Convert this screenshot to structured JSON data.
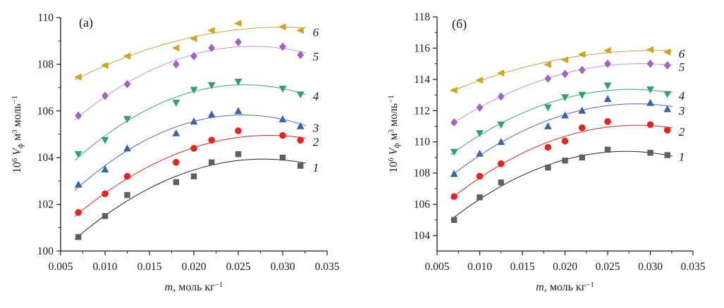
{
  "figure": {
    "background": "#ffffff",
    "axis_color": "#1a1a1a"
  },
  "chart_data": [
    {
      "id": "chart-a",
      "type": "scatter",
      "panel_label": "(a)",
      "xlabel_parts": [
        {
          "t": "m",
          "s": "i"
        },
        {
          "t": ", моль кг",
          "s": "n"
        },
        {
          "t": "−1",
          "s": "sup"
        }
      ],
      "ylabel_parts": [
        {
          "t": "10",
          "s": "n"
        },
        {
          "t": "6",
          "s": "sup"
        },
        {
          "t": " ",
          "s": "n"
        },
        {
          "t": "V",
          "s": "i"
        },
        {
          "t": "ф",
          "s": "sub"
        },
        {
          "t": " м",
          "s": "n"
        },
        {
          "t": "3",
          "s": "sup"
        },
        {
          "t": " моль",
          "s": "n"
        },
        {
          "t": "−1",
          "s": "sup"
        }
      ],
      "xlim": [
        0.005,
        0.035
      ],
      "ylim": [
        100,
        110
      ],
      "xticks": [
        0.005,
        0.01,
        0.015,
        0.02,
        0.025,
        0.03,
        0.035
      ],
      "xtick_labels": [
        "0.005",
        "0.010",
        "0.015",
        "0.020",
        "0.025",
        "0.030",
        "0.035"
      ],
      "xminor": [
        0.0075,
        0.0125,
        0.0175,
        0.0225,
        0.0275,
        0.0325
      ],
      "yticks": [
        100,
        102,
        104,
        106,
        108,
        110
      ],
      "ytick_labels": [
        "100",
        "102",
        "104",
        "106",
        "108",
        "110"
      ],
      "yminor": [
        101,
        103,
        105,
        107,
        109
      ],
      "grid": false,
      "legend_position": "inline-right",
      "x": [
        0.007,
        0.01,
        0.0125,
        0.018,
        0.02,
        0.022,
        0.025,
        0.03,
        0.032
      ],
      "series": [
        {
          "label": "1",
          "marker": "square",
          "marker_color": "#5f5f5f",
          "line_color": "#262626",
          "values": [
            100.6,
            101.5,
            102.4,
            102.95,
            103.2,
            103.8,
            104.15,
            104.0,
            103.65
          ]
        },
        {
          "label": "2",
          "marker": "circle",
          "marker_color": "#e6241f",
          "line_color": "#e02a24",
          "values": [
            101.65,
            102.45,
            103.2,
            103.8,
            104.4,
            104.75,
            105.15,
            104.95,
            104.75
          ]
        },
        {
          "label": "3",
          "marker": "triangle-up",
          "marker_color": "#3a62ae",
          "line_color": "#5068b8",
          "values": [
            102.85,
            103.5,
            104.4,
            105.05,
            105.55,
            105.85,
            106.0,
            105.65,
            105.35
          ]
        },
        {
          "label": "4",
          "marker": "triangle-down",
          "marker_color": "#2ea362",
          "line_color": "#3aa878",
          "values": [
            104.15,
            104.75,
            105.65,
            106.35,
            106.9,
            107.1,
            107.25,
            106.95,
            106.7
          ]
        },
        {
          "label": "5",
          "marker": "diamond",
          "marker_color": "#9d64c3",
          "line_color": "#c892d8",
          "values": [
            105.8,
            106.65,
            107.15,
            108.0,
            108.35,
            108.7,
            108.95,
            108.75,
            108.4
          ]
        },
        {
          "label": "6",
          "marker": "triangle-left",
          "marker_color": "#d0a41c",
          "line_color": "#c7a53c",
          "values": [
            107.45,
            107.95,
            108.35,
            108.7,
            109.1,
            109.45,
            109.75,
            109.6,
            109.45
          ]
        }
      ]
    },
    {
      "id": "chart-b",
      "type": "scatter",
      "panel_label": "(б)",
      "xlabel_parts": [
        {
          "t": "m",
          "s": "i"
        },
        {
          "t": ", моль кг",
          "s": "n"
        },
        {
          "t": "−1",
          "s": "sup"
        }
      ],
      "ylabel_parts": [
        {
          "t": "10",
          "s": "n"
        },
        {
          "t": "6",
          "s": "sup"
        },
        {
          "t": " ",
          "s": "n"
        },
        {
          "t": "V",
          "s": "i"
        },
        {
          "t": "ф",
          "s": "sub"
        },
        {
          "t": " м",
          "s": "n"
        },
        {
          "t": "3",
          "s": "sup"
        },
        {
          "t": " моль",
          "s": "n"
        },
        {
          "t": "−1",
          "s": "sup"
        }
      ],
      "xlim": [
        0.005,
        0.035
      ],
      "ylim": [
        104,
        118
      ],
      "xticks": [
        0.005,
        0.01,
        0.015,
        0.02,
        0.025,
        0.03,
        0.035
      ],
      "xtick_labels": [
        "0.005",
        "0.010",
        "0.015",
        "0.020",
        "0.025",
        "0.030",
        "0.035"
      ],
      "xminor": [
        0.0075,
        0.0125,
        0.0175,
        0.0225,
        0.0275,
        0.0325
      ],
      "yticks": [
        104,
        106,
        108,
        110,
        112,
        114,
        116,
        118
      ],
      "ytick_labels": [
        "104",
        "106",
        "108",
        "110",
        "112",
        "114",
        "116",
        "118"
      ],
      "yminor": [
        105,
        107,
        109,
        111,
        113,
        115,
        117
      ],
      "grid": false,
      "legend_position": "inline-right",
      "x": [
        0.007,
        0.01,
        0.0125,
        0.018,
        0.02,
        0.022,
        0.025,
        0.03,
        0.032
      ],
      "series": [
        {
          "label": "1",
          "marker": "square",
          "marker_color": "#5f5f5f",
          "line_color": "#262626",
          "values": [
            105.0,
            106.45,
            107.4,
            108.35,
            108.8,
            109.0,
            109.5,
            109.3,
            109.15
          ]
        },
        {
          "label": "2",
          "marker": "circle",
          "marker_color": "#e6241f",
          "line_color": "#e02a24",
          "values": [
            106.5,
            107.8,
            108.6,
            109.65,
            110.05,
            110.9,
            111.3,
            111.1,
            110.75
          ]
        },
        {
          "label": "3",
          "marker": "triangle-up",
          "marker_color": "#3a62ae",
          "line_color": "#5068b8",
          "values": [
            107.95,
            109.25,
            110.0,
            111.0,
            111.7,
            112.0,
            112.75,
            112.5,
            112.1
          ]
        },
        {
          "label": "4",
          "marker": "triangle-down",
          "marker_color": "#2ea362",
          "line_color": "#3aa878",
          "values": [
            109.35,
            110.55,
            111.1,
            112.2,
            112.85,
            113.0,
            113.6,
            113.35,
            113.05
          ]
        },
        {
          "label": "5",
          "marker": "diamond",
          "marker_color": "#9d64c3",
          "line_color": "#c892d8",
          "values": [
            111.25,
            112.2,
            112.9,
            114.05,
            114.35,
            114.6,
            115.0,
            115.0,
            114.9
          ]
        },
        {
          "label": "6",
          "marker": "triangle-left",
          "marker_color": "#d0a41c",
          "line_color": "#c7a53c",
          "values": [
            113.3,
            113.95,
            114.4,
            114.95,
            115.25,
            115.6,
            115.85,
            115.9,
            115.75
          ]
        }
      ]
    }
  ]
}
